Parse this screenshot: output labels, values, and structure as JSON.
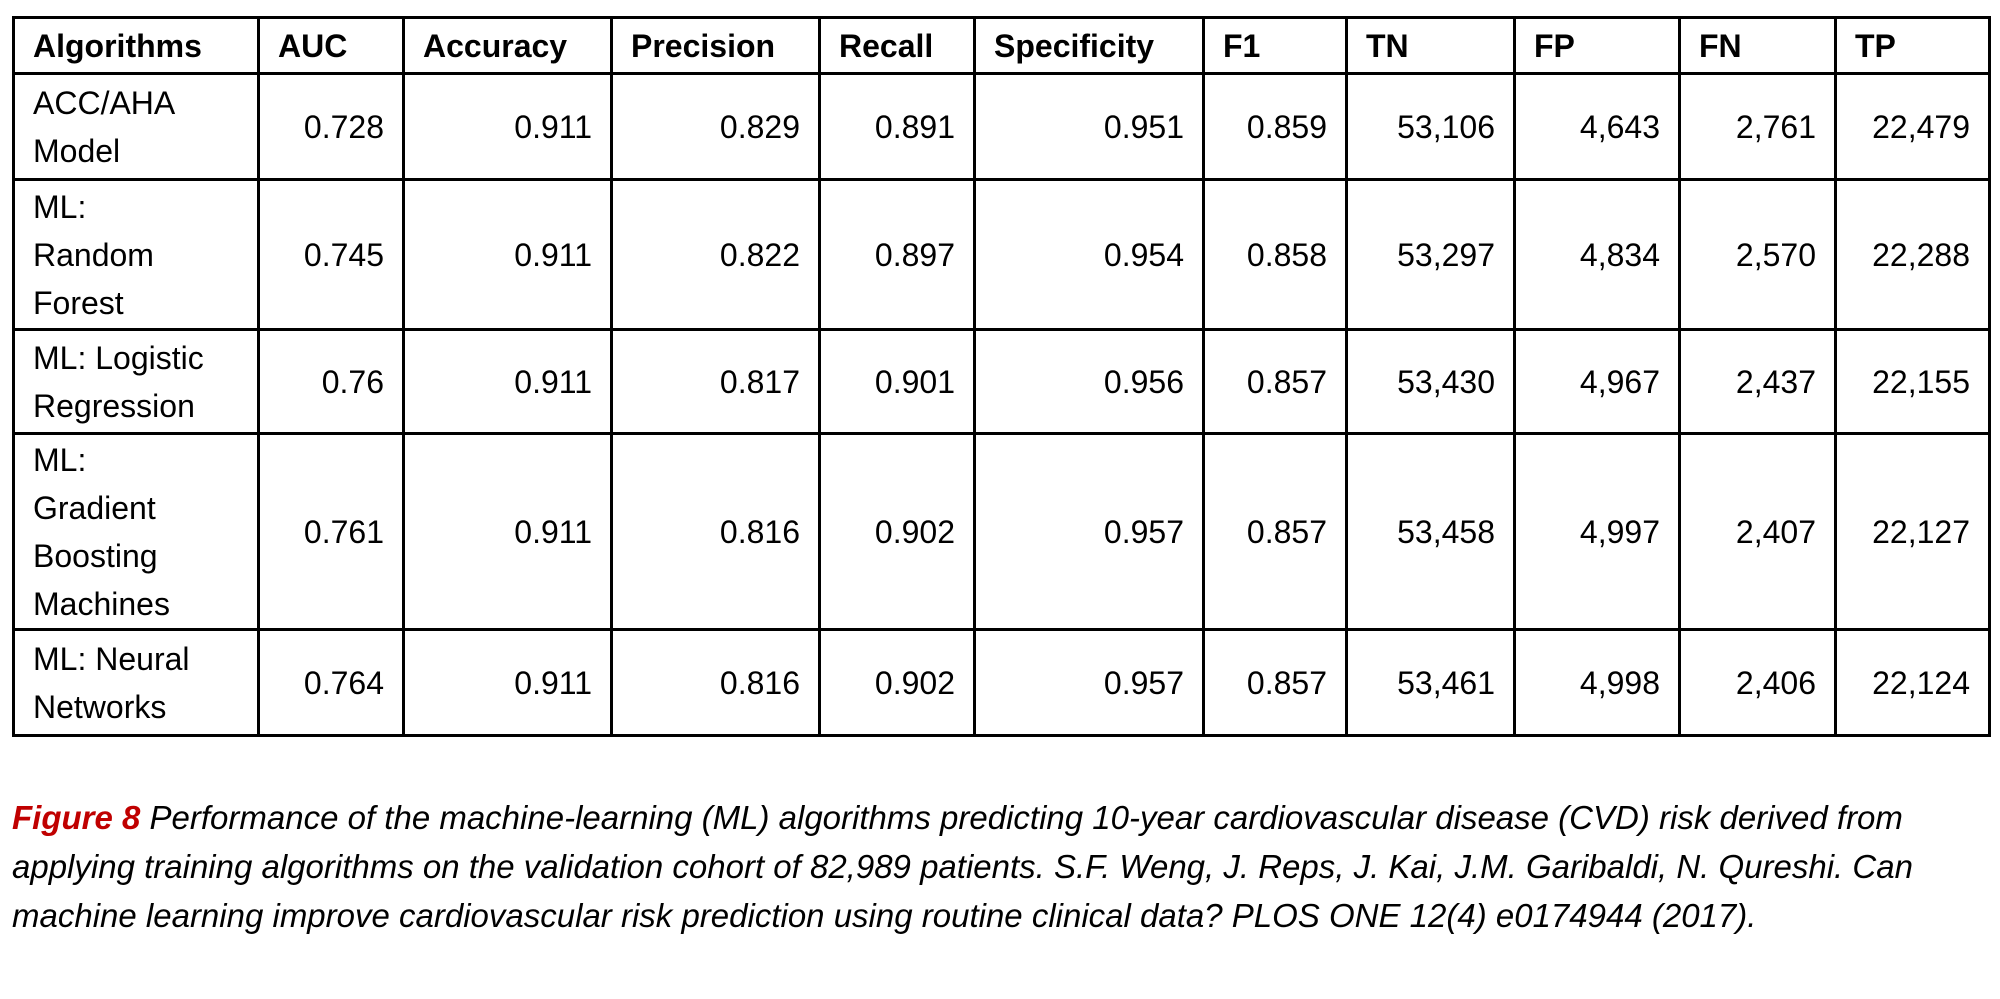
{
  "table": {
    "columns": [
      "Algorithms",
      "AUC",
      "Accuracy",
      "Precision",
      "Recall",
      "Specificity",
      "F1",
      "TN",
      "FP",
      "FN",
      "TP"
    ],
    "rows": [
      {
        "algorithm": "ACC/AHA\nModel",
        "values": [
          "0.728",
          "0.911",
          "0.829",
          "0.891",
          "0.951",
          "0.859",
          "53,106",
          "4,643",
          "2,761",
          "22,479"
        ]
      },
      {
        "algorithm": "ML:\nRandom\nForest",
        "values": [
          "0.745",
          "0.911",
          "0.822",
          "0.897",
          "0.954",
          "0.858",
          "53,297",
          "4,834",
          "2,570",
          "22,288"
        ]
      },
      {
        "algorithm": "ML: Logistic\nRegression",
        "values": [
          "0.76",
          "0.911",
          "0.817",
          "0.901",
          "0.956",
          "0.857",
          "53,430",
          "4,967",
          "2,437",
          "22,155"
        ]
      },
      {
        "algorithm": "ML:\nGradient\nBoosting\nMachines",
        "values": [
          "0.761",
          "0.911",
          "0.816",
          "0.902",
          "0.957",
          "0.857",
          "53,458",
          "4,997",
          "2,407",
          "22,127"
        ]
      },
      {
        "algorithm": "ML: Neural\nNetworks",
        "values": [
          "0.764",
          "0.911",
          "0.816",
          "0.902",
          "0.957",
          "0.857",
          "53,461",
          "4,998",
          "2,406",
          "22,124"
        ]
      }
    ]
  },
  "caption": {
    "label": "Figure 8",
    "text": " Performance of the machine-learning (ML) algorithms predicting 10-year cardiovascular disease (CVD) risk derived from applying training algorithms on the validation cohort of 82,989 patients. S.F. Weng, J. Reps, J. Kai, J.M. Garibaldi, N. Qureshi. Can machine learning improve cardiovascular risk prediction using routine clinical data? PLOS ONE 12(4) e0174944 (2017).",
    "label_color": "#c00000"
  }
}
